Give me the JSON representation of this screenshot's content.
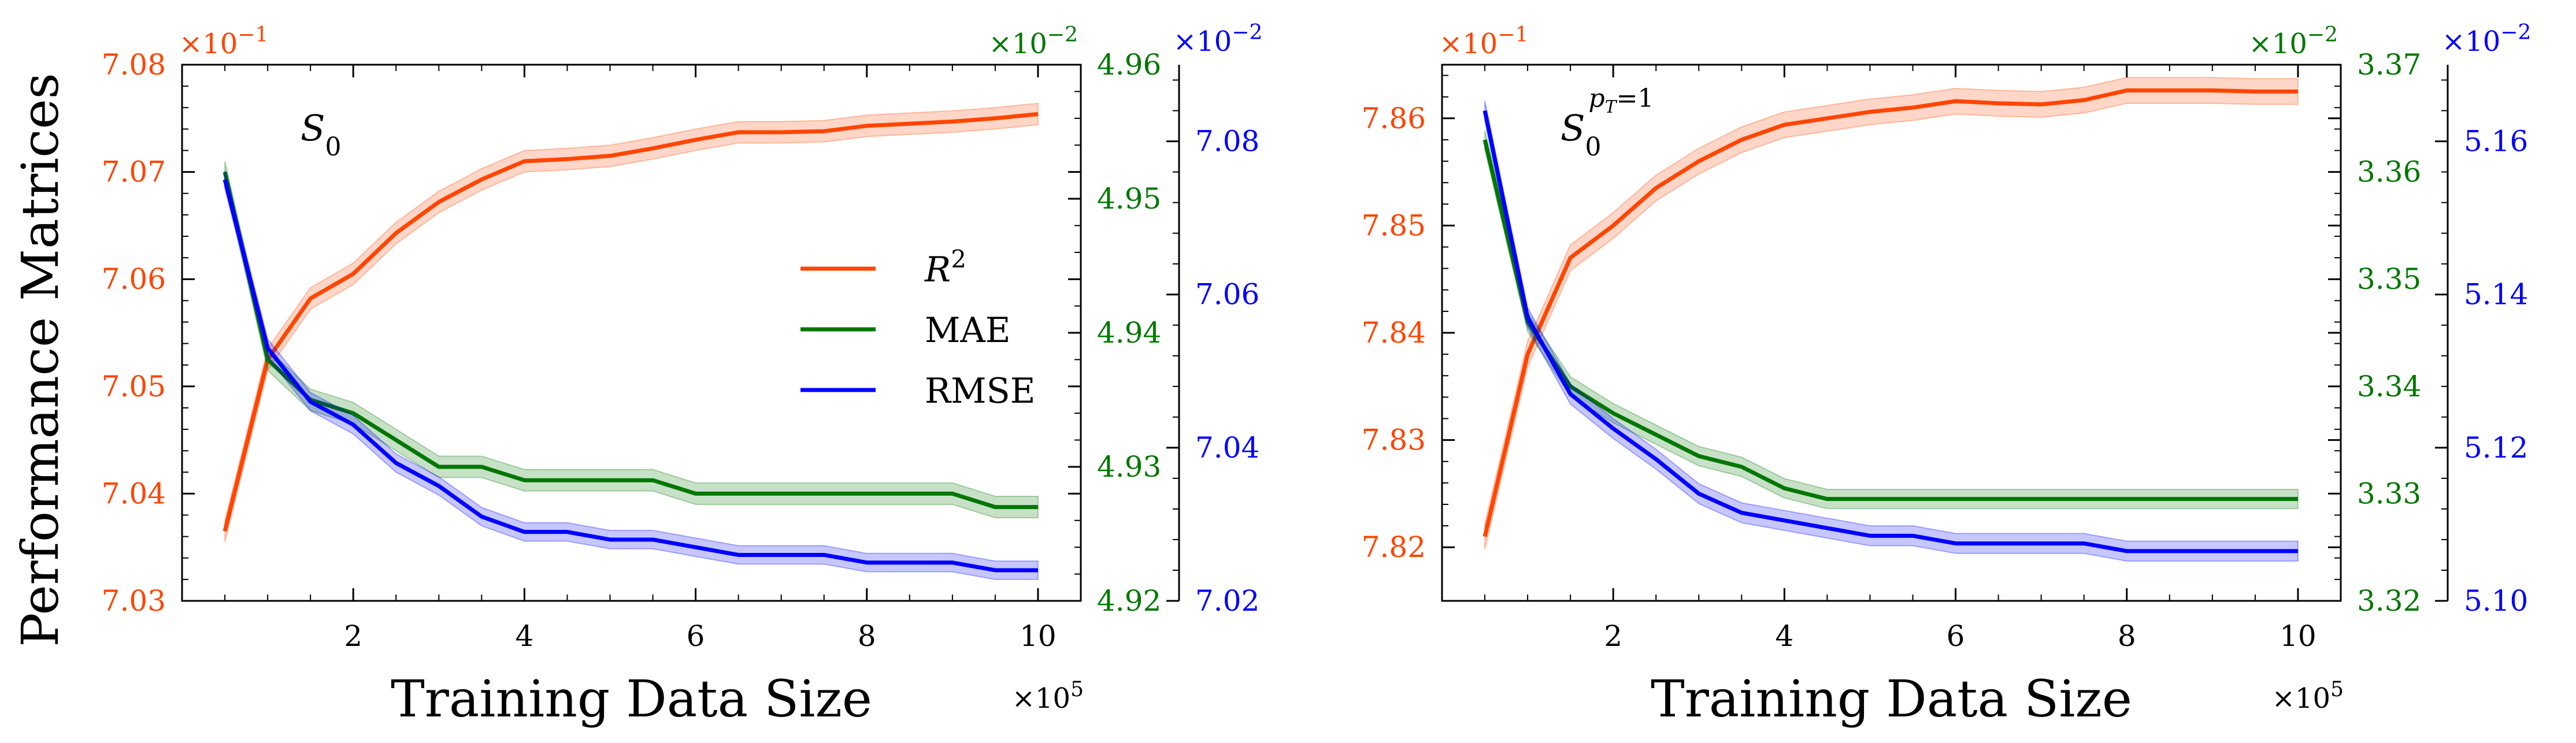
{
  "figure": {
    "ylabel": "Performance Matrices",
    "xlabel": "Training Data Size",
    "x_multiplier": "×10^5",
    "colors": {
      "r2": "#ff4500",
      "mae": "#007700",
      "rmse": "#0000ff"
    }
  },
  "chart_data": [
    {
      "type": "line",
      "annotation": "S_0",
      "xlabel": "Training Data Size",
      "ylabel": "Performance Matrices",
      "x_multiplier": "×10^5",
      "xlim": [
        0.0,
        10.5
      ],
      "xticks": [
        2,
        4,
        6,
        8,
        10
      ],
      "legend": {
        "placement": "center-right",
        "entries": [
          "R^2",
          "MAE",
          "RMSE"
        ]
      },
      "series": [
        {
          "name": "R^2",
          "axis": "left",
          "multiplier": "×10^-1",
          "color": "#ff4500",
          "ylim": [
            7.03,
            7.08
          ],
          "yticks": [
            "7.03",
            "7.04",
            "7.05",
            "7.06",
            "7.07",
            "7.08"
          ],
          "x": [
            0.5,
            1.0,
            1.5,
            2.0,
            2.5,
            3.0,
            3.5,
            4.0,
            4.5,
            5.0,
            5.5,
            6.0,
            6.5,
            7.0,
            7.5,
            8.0,
            8.5,
            9.0,
            9.5,
            10.0
          ],
          "y": [
            7.0365,
            7.0525,
            7.0582,
            7.0605,
            7.0643,
            7.0672,
            7.0693,
            7.071,
            7.0712,
            7.0715,
            7.0722,
            7.073,
            7.0737,
            7.0737,
            7.0738,
            7.0743,
            7.0745,
            7.0747,
            7.075,
            7.0754
          ],
          "band": 0.001
        },
        {
          "name": "MAE",
          "axis": "right-inner",
          "multiplier": "×10^-2",
          "color": "#007700",
          "ylim": [
            4.92,
            4.96
          ],
          "yticks": [
            "4.92",
            "4.93",
            "4.94",
            "4.95",
            "4.96"
          ],
          "x": [
            0.5,
            1.0,
            1.5,
            2.0,
            2.5,
            3.0,
            3.5,
            4.0,
            4.5,
            5.0,
            5.5,
            6.0,
            6.5,
            7.0,
            7.5,
            8.0,
            8.5,
            9.0,
            9.5,
            10.0
          ],
          "y": [
            4.952,
            4.938,
            4.935,
            4.934,
            4.932,
            4.93,
            4.93,
            4.929,
            4.929,
            4.929,
            4.929,
            4.928,
            4.928,
            4.928,
            4.928,
            4.928,
            4.928,
            4.928,
            4.927,
            4.927
          ],
          "band": 0.0008
        },
        {
          "name": "RMSE",
          "axis": "right-outer",
          "multiplier": "×10^-2",
          "color": "#0000ff",
          "ylim": [
            7.02,
            7.09
          ],
          "yticks": [
            "7.02",
            "7.04",
            "7.06",
            "7.08"
          ],
          "x": [
            0.5,
            1.0,
            1.5,
            2.0,
            2.5,
            3.0,
            3.5,
            4.0,
            4.5,
            5.0,
            5.5,
            6.0,
            6.5,
            7.0,
            7.5,
            8.0,
            8.5,
            9.0,
            9.5,
            10.0
          ],
          "y": [
            7.075,
            7.053,
            7.046,
            7.043,
            7.038,
            7.035,
            7.031,
            7.029,
            7.029,
            7.028,
            7.028,
            7.027,
            7.026,
            7.026,
            7.026,
            7.025,
            7.025,
            7.025,
            7.024,
            7.024
          ],
          "band": 0.0012
        }
      ]
    },
    {
      "type": "line",
      "annotation": "S_0^{p_T=1}",
      "xlabel": "Training Data Size",
      "x_multiplier": "×10^5",
      "xlim": [
        0.0,
        10.5
      ],
      "xticks": [
        2,
        4,
        6,
        8,
        10
      ],
      "series": [
        {
          "name": "R^2",
          "axis": "left",
          "multiplier": "×10^-1",
          "color": "#ff4500",
          "ylim": [
            7.815,
            7.865
          ],
          "yticks": [
            "7.82",
            "7.83",
            "7.84",
            "7.85",
            "7.86"
          ],
          "x": [
            0.5,
            1.0,
            1.5,
            2.0,
            2.5,
            3.0,
            3.5,
            4.0,
            4.5,
            5.0,
            5.5,
            6.0,
            6.5,
            7.0,
            7.5,
            8.0,
            8.5,
            9.0,
            9.5,
            10.0
          ],
          "y": [
            7.821,
            7.838,
            7.847,
            7.85,
            7.8535,
            7.856,
            7.858,
            7.8594,
            7.86,
            7.8606,
            7.861,
            7.8616,
            7.8614,
            7.8613,
            7.8617,
            7.8626,
            7.8626,
            7.8626,
            7.8625,
            7.8625
          ],
          "band": 0.0012
        },
        {
          "name": "MAE",
          "axis": "right-inner",
          "multiplier": "×10^-2",
          "color": "#007700",
          "ylim": [
            3.32,
            3.37
          ],
          "yticks": [
            "3.32",
            "3.33",
            "3.34",
            "3.35",
            "3.36",
            "3.37"
          ],
          "x": [
            0.5,
            1.0,
            1.5,
            2.0,
            2.5,
            3.0,
            3.5,
            4.0,
            4.5,
            5.0,
            5.5,
            6.0,
            6.5,
            7.0,
            7.5,
            8.0,
            8.5,
            9.0,
            9.5,
            10.0
          ],
          "y": [
            3.363,
            3.346,
            3.34,
            3.3375,
            3.3355,
            3.3335,
            3.3325,
            3.3305,
            3.3295,
            3.3295,
            3.3295,
            3.3295,
            3.3295,
            3.3295,
            3.3295,
            3.3295,
            3.3295,
            3.3295,
            3.3295,
            3.3295
          ],
          "band": 0.0009
        },
        {
          "name": "RMSE",
          "axis": "right-outer",
          "multiplier": "×10^-2",
          "color": "#0000ff",
          "ylim": [
            5.1,
            5.17
          ],
          "yticks": [
            "5.10",
            "5.12",
            "5.14",
            "5.16"
          ],
          "x": [
            0.5,
            1.0,
            1.5,
            2.0,
            2.5,
            3.0,
            3.5,
            4.0,
            4.5,
            5.0,
            5.5,
            6.0,
            6.5,
            7.0,
            7.5,
            8.0,
            8.5,
            9.0,
            9.5,
            10.0
          ],
          "y": [
            5.164,
            5.137,
            5.127,
            5.1225,
            5.1185,
            5.114,
            5.1115,
            5.1105,
            5.1095,
            5.1085,
            5.1085,
            5.1075,
            5.1075,
            5.1075,
            5.1075,
            5.1065,
            5.1065,
            5.1065,
            5.1065,
            5.1065
          ],
          "band": 0.0013
        }
      ]
    }
  ]
}
